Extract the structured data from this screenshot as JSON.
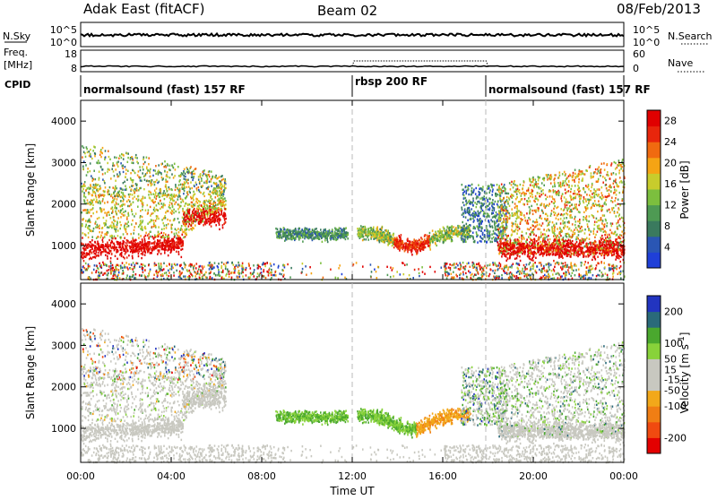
{
  "header": {
    "station": "Adak East (fitACF)",
    "beam": "Beam 02",
    "date": "08/Feb/2013"
  },
  "top_strips": {
    "nsky_label": "N.Sky",
    "nsky_ticks": [
      "10^5",
      "10^0"
    ],
    "nsearch_label": "N.Search",
    "nsearch_ticks": [
      "10^5",
      "10^0"
    ],
    "freq_label_1": "Freq.",
    "freq_label_2": "[MHz]",
    "freq_ticks": [
      "18",
      "8"
    ],
    "nave_label": "Nave",
    "nave_ticks": [
      "60",
      "0"
    ],
    "cpid_label": "CPID",
    "cpid_segments": [
      {
        "label": "normalsound (fast) 157 RF",
        "start_h": 0,
        "end_h": 12
      },
      {
        "label": "rbsp 200 RF",
        "start_h": 12,
        "end_h": 18
      },
      {
        "label": "normalsound (fast) 157 RF",
        "start_h": 18,
        "end_h": 24
      }
    ]
  },
  "colors": {
    "power": [
      "#1f3fd8",
      "#2a56b4",
      "#3a7a5e",
      "#4e9a53",
      "#7cbf3e",
      "#c8cc2c",
      "#f5a414",
      "#f06a10",
      "#e8260c",
      "#e00000"
    ],
    "velocity": [
      "#e30000",
      "#f04a10",
      "#f07e14",
      "#f2a81a",
      "#c8c8c0",
      "#c8c8c0",
      "#88d23a",
      "#4aa82e",
      "#2a6a7a",
      "#2234c0"
    ],
    "ground": [
      "#d6a35a",
      "#d08034",
      "#b0b0b0"
    ]
  },
  "chart_data": [
    {
      "type": "heatmap",
      "panel": "power",
      "ylabel": "Slant Range [km]",
      "xlim": [
        0,
        24
      ],
      "ylim": [
        180,
        4500
      ],
      "y_ticks": [
        1000,
        2000,
        3000,
        4000
      ],
      "colorbar_label": "Power [dB]",
      "colorbar_ticks": [
        4,
        8,
        12,
        16,
        20,
        24,
        28
      ],
      "colorbar_range": [
        0,
        30
      ],
      "regions": [
        {
          "t": [
            0.0,
            6.4
          ],
          "r": [
            650,
            3500
          ],
          "note_peak_range_km": 1000
        },
        {
          "t": [
            8.6,
            11.8
          ],
          "r": [
            1100,
            1500
          ]
        },
        {
          "t": [
            12.2,
            17.2
          ],
          "r": [
            900,
            1500
          ]
        },
        {
          "t": [
            16.8,
            18.8
          ],
          "r": [
            1100,
            2500
          ]
        },
        {
          "t": [
            18.4,
            24.0
          ],
          "r": [
            650,
            3000
          ],
          "note_peak_range_km": 950
        }
      ]
    },
    {
      "type": "heatmap",
      "panel": "velocity",
      "ylabel": "Slant Range [km]",
      "xlim": [
        0,
        24
      ],
      "ylim": [
        180,
        4500
      ],
      "y_ticks": [
        1000,
        2000,
        3000,
        4000
      ],
      "colorbar_label": "Velocity [m s^-1]",
      "colorbar_ticks": [
        -200,
        -100,
        -50,
        -15,
        15,
        50,
        100,
        200
      ],
      "colorbar_range": [
        -250,
        250
      ],
      "x_ticks": [
        "00:00",
        "04:00",
        "08:00",
        "12:00",
        "16:00",
        "20:00",
        "00:00"
      ],
      "x_tick_hours": [
        0,
        4,
        8,
        12,
        16,
        20,
        24
      ],
      "xlabel": "Time UT"
    }
  ]
}
